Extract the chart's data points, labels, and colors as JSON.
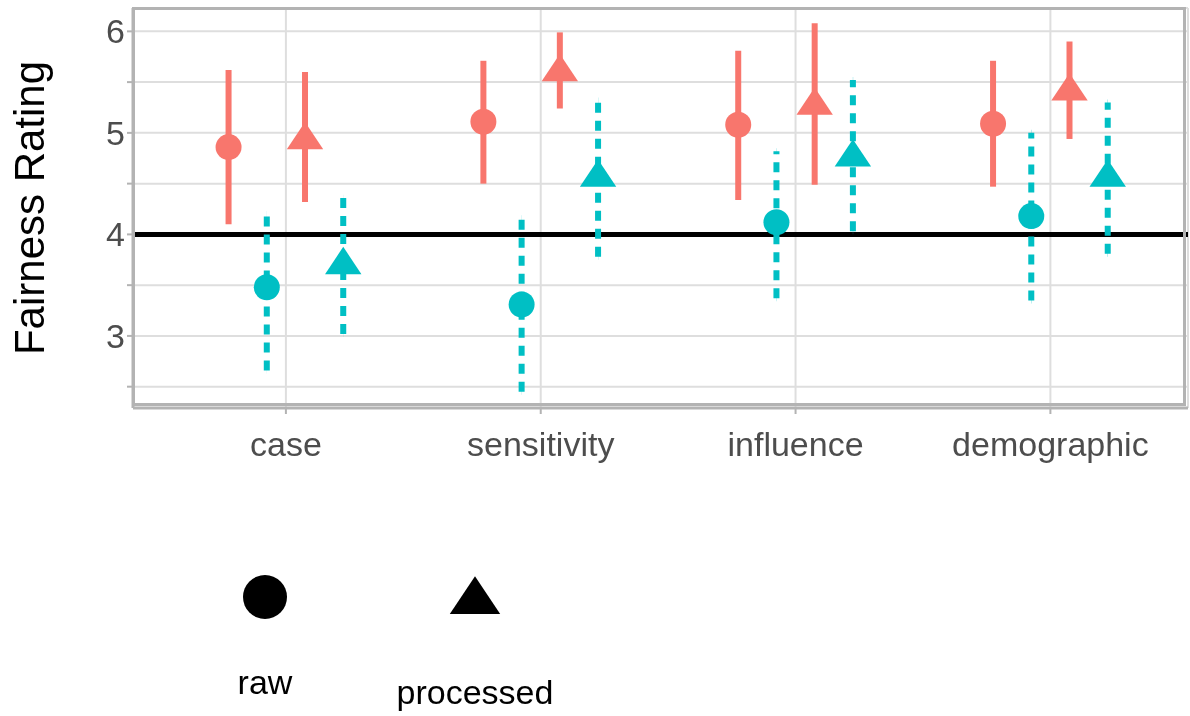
{
  "chart_data": {
    "type": "scatter",
    "ylabel": "Fairness Rating",
    "categories": [
      "case",
      "sensitivity",
      "influence",
      "demographic"
    ],
    "ylim": [
      2.29,
      6.23
    ],
    "yticks": [
      {
        "value": 2.5,
        "label": null
      },
      3,
      {
        "value": 3.5,
        "label": null
      },
      4,
      {
        "value": 4.5,
        "label": null
      },
      5,
      {
        "value": 5.5,
        "label": null
      },
      6
    ],
    "grid": true,
    "annotations": [
      "raw",
      "processed"
    ],
    "ref_lines": [
      {
        "axis": "y",
        "value": 4,
        "color": "#000000"
      }
    ],
    "series": [
      {
        "color": "#f8766d",
        "marker": "circle",
        "line_style": "solid",
        "values": [
          4.86,
          5.11,
          5.08,
          5.09
        ],
        "errors": [
          [
            4.1,
            5.62
          ],
          [
            4.5,
            5.71
          ],
          [
            4.34,
            5.81
          ],
          [
            4.47,
            5.71
          ]
        ]
      },
      {
        "color": "#00bfc4",
        "marker": "circle",
        "line_style": "dashed",
        "values": [
          3.48,
          3.31,
          4.12,
          4.18
        ],
        "errors": [
          [
            2.66,
            4.2
          ],
          [
            2.45,
            4.16
          ],
          [
            3.37,
            4.82
          ],
          [
            3.35,
            5.0
          ]
        ]
      },
      {
        "color": "#f8766d",
        "marker": "triangle",
        "line_style": "solid",
        "values": [
          4.96,
          5.63,
          5.3,
          5.44
        ],
        "errors": [
          [
            4.32,
            5.6
          ],
          [
            5.24,
            5.99
          ],
          [
            4.49,
            6.08
          ],
          [
            4.94,
            5.9
          ]
        ]
      },
      {
        "color": "#00bfc4",
        "marker": "triangle",
        "line_style": "dashed",
        "values": [
          3.73,
          4.59,
          4.79,
          4.59
        ],
        "errors": [
          [
            3.02,
            4.36
          ],
          [
            3.78,
            5.32
          ],
          [
            4.03,
            5.52
          ],
          [
            3.81,
            5.3
          ]
        ]
      }
    ]
  }
}
